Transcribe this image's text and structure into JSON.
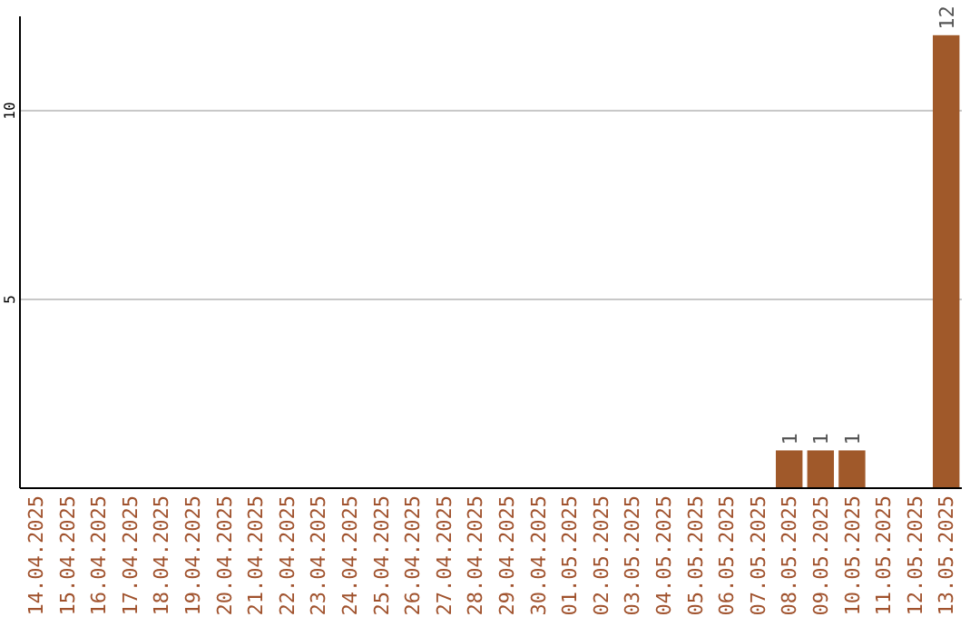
{
  "chart_data": {
    "type": "bar",
    "categories": [
      "14.04.2025",
      "15.04.2025",
      "16.04.2025",
      "17.04.2025",
      "18.04.2025",
      "19.04.2025",
      "20.04.2025",
      "21.04.2025",
      "22.04.2025",
      "23.04.2025",
      "24.04.2025",
      "25.04.2025",
      "26.04.2025",
      "27.04.2025",
      "28.04.2025",
      "29.04.2025",
      "30.04.2025",
      "01.05.2025",
      "02.05.2025",
      "03.05.2025",
      "04.05.2025",
      "05.05.2025",
      "06.05.2025",
      "07.05.2025",
      "08.05.2025",
      "09.05.2025",
      "10.05.2025",
      "11.05.2025",
      "12.05.2025",
      "13.05.2025"
    ],
    "values": [
      0,
      0,
      0,
      0,
      0,
      0,
      0,
      0,
      0,
      0,
      0,
      0,
      0,
      0,
      0,
      0,
      0,
      0,
      0,
      0,
      0,
      0,
      0,
      0,
      1,
      1,
      1,
      0,
      0,
      12
    ],
    "value_labels": [
      null,
      null,
      null,
      null,
      null,
      null,
      null,
      null,
      null,
      null,
      null,
      null,
      null,
      null,
      null,
      null,
      null,
      null,
      null,
      null,
      null,
      null,
      null,
      null,
      "1",
      "1",
      "1",
      null,
      null,
      "12"
    ],
    "color": "#a0592a",
    "ylim": [
      0,
      12.5
    ],
    "yticks": [
      5,
      10
    ],
    "grid": "y"
  }
}
